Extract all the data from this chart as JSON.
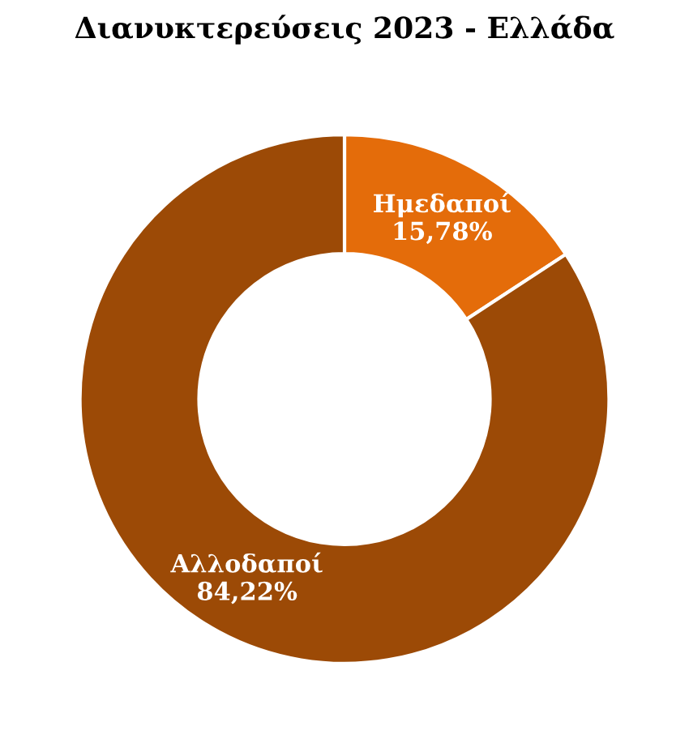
{
  "chart_data": {
    "type": "donut",
    "title": "Διανυκτερεύσεις 2023 - Ελλάδα",
    "categories": [
      "Ημεδαποί",
      "Αλλοδαποί"
    ],
    "values": [
      15.78,
      84.22
    ],
    "value_labels": [
      "15,78%",
      "84,22%"
    ],
    "colors": [
      "#e46c0a",
      "#9c4a06"
    ],
    "legend": false
  }
}
